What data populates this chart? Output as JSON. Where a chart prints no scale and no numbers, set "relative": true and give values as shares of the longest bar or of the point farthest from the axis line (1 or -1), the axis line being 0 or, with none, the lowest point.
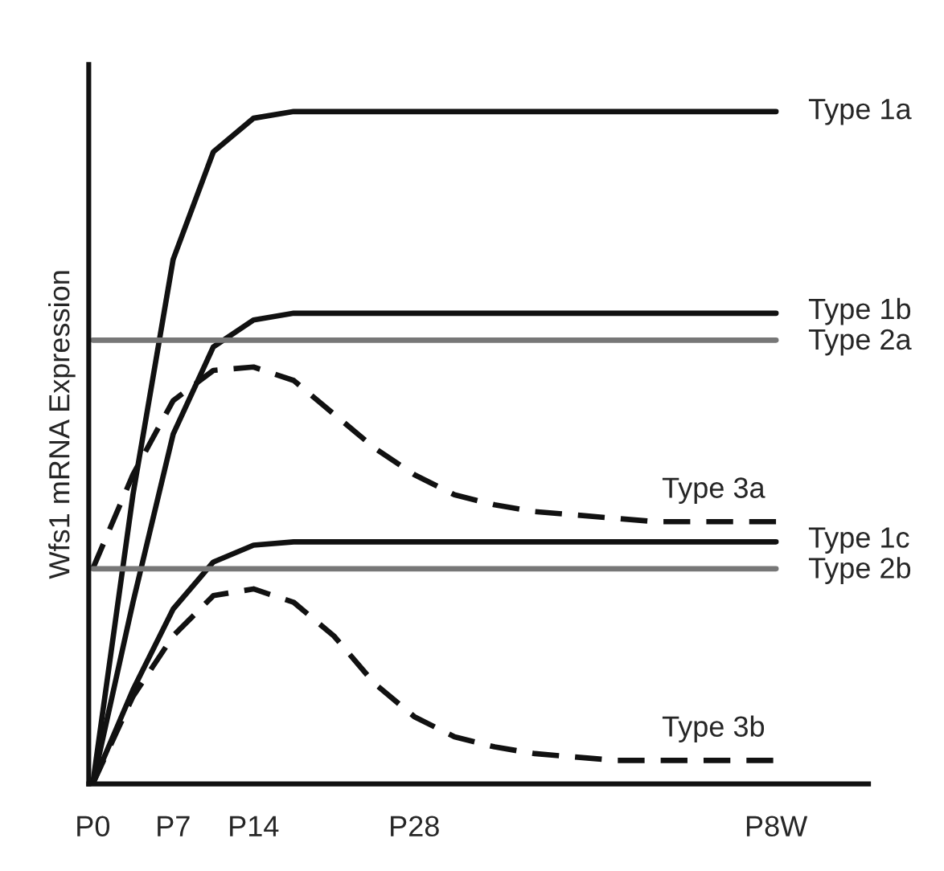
{
  "chart_data": {
    "type": "line",
    "relative": true,
    "ylabel": "Wfs1 mRNA Expression",
    "categories": [
      "P0",
      null,
      "P7",
      null,
      "P14",
      null,
      null,
      null,
      "P28",
      null,
      null,
      null,
      null,
      null,
      null,
      null,
      null,
      "P8W"
    ],
    "grid": false,
    "legend": false,
    "marker": "none",
    "series": [
      {
        "name": "Type 1a",
        "color": "#111111",
        "line_style": "solid",
        "values": [
          0,
          0.43,
          0.78,
          0.94,
          0.99,
          1.0,
          1.0,
          1.0,
          1.0,
          1.0,
          1.0,
          1.0,
          1.0,
          1.0,
          1.0,
          1.0,
          1.0,
          1.0
        ]
      },
      {
        "name": "Type 1b",
        "color": "#111111",
        "line_style": "solid",
        "values": [
          0,
          0.27,
          0.52,
          0.65,
          0.69,
          0.7,
          0.7,
          0.7,
          0.7,
          0.7,
          0.7,
          0.7,
          0.7,
          0.7,
          0.7,
          0.7,
          0.7,
          0.7
        ]
      },
      {
        "name": "Type 2a",
        "color": "#777777",
        "line_style": "solid",
        "values": [
          0.66,
          0.66,
          0.66,
          0.66,
          0.66,
          0.66,
          0.66,
          0.66,
          0.66,
          0.66,
          0.66,
          0.66,
          0.66,
          0.66,
          0.66,
          0.66,
          0.66,
          0.66
        ]
      },
      {
        "name": "Type 3a",
        "color": "#111111",
        "line_style": "dashed",
        "values": [
          0.32,
          0.46,
          0.57,
          0.615,
          0.62,
          0.6,
          0.55,
          0.5,
          0.46,
          0.43,
          0.415,
          0.405,
          0.4,
          0.395,
          0.39,
          0.39,
          0.39,
          0.39
        ]
      },
      {
        "name": "Type 1c",
        "color": "#111111",
        "line_style": "solid",
        "values": [
          0,
          0.14,
          0.26,
          0.33,
          0.355,
          0.36,
          0.36,
          0.36,
          0.36,
          0.36,
          0.36,
          0.36,
          0.36,
          0.36,
          0.36,
          0.36,
          0.36,
          0.36
        ]
      },
      {
        "name": "Type 2b",
        "color": "#777777",
        "line_style": "solid",
        "values": [
          0.32,
          0.32,
          0.32,
          0.32,
          0.32,
          0.32,
          0.32,
          0.32,
          0.32,
          0.32,
          0.32,
          0.32,
          0.32,
          0.32,
          0.32,
          0.32,
          0.32,
          0.32
        ]
      },
      {
        "name": "Type 3b",
        "color": "#111111",
        "line_style": "dashed",
        "values": [
          0,
          0.13,
          0.22,
          0.28,
          0.29,
          0.27,
          0.22,
          0.15,
          0.1,
          0.07,
          0.055,
          0.045,
          0.04,
          0.035,
          0.035,
          0.035,
          0.035,
          0.035
        ]
      }
    ]
  }
}
